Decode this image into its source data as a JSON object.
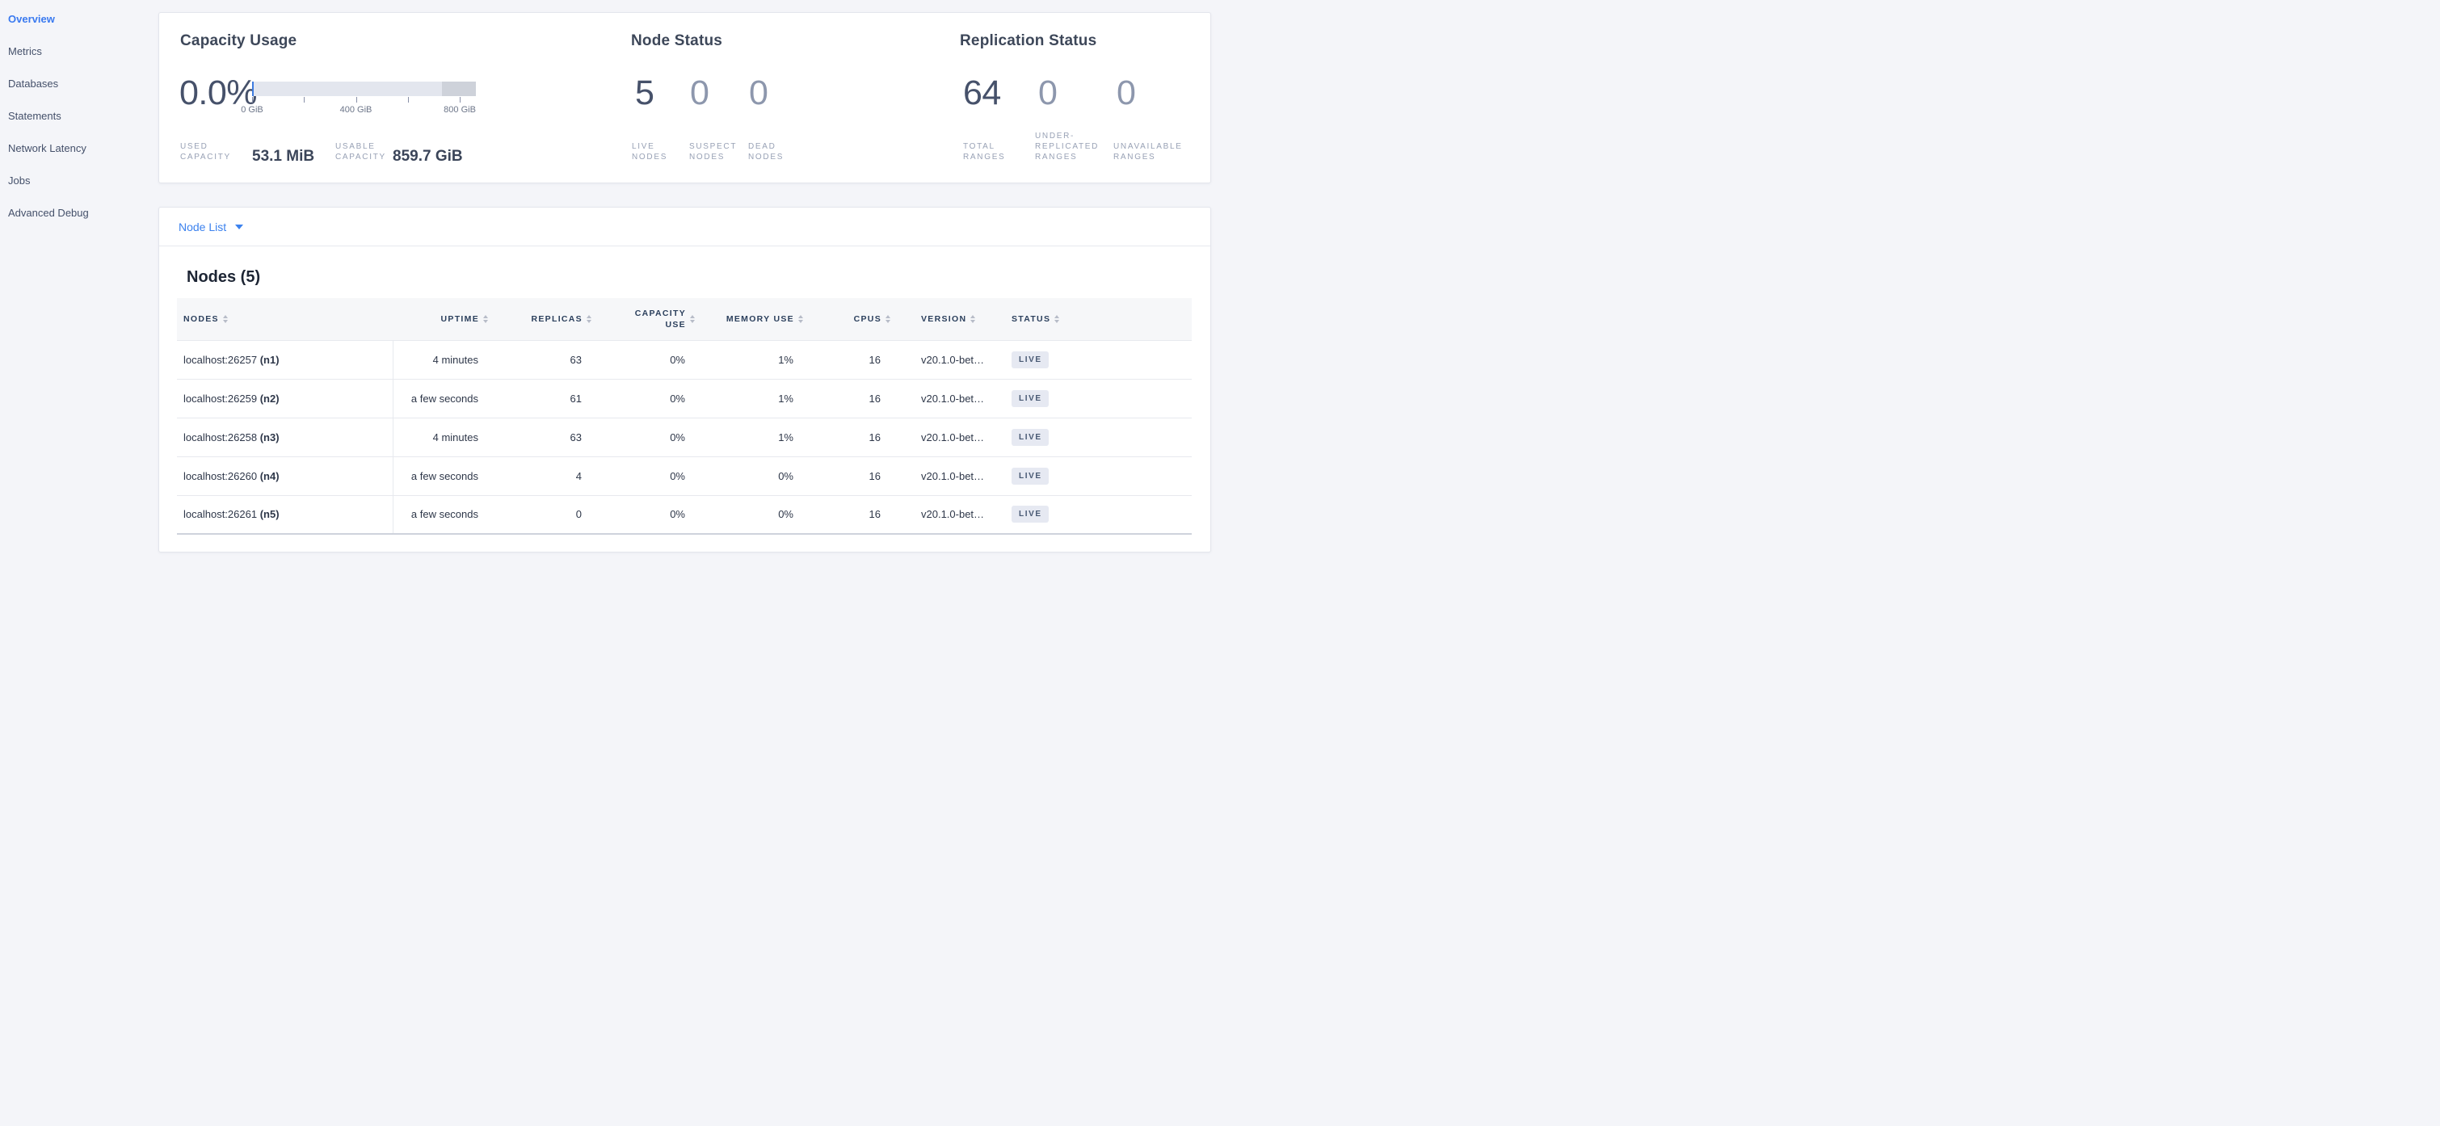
{
  "colors": {
    "page_bg": "#f4f5f9",
    "sidebar_active_blue": "#3a7af0",
    "link_blue": "#3c82ee",
    "gauge_track": "#e3e6ee",
    "gauge_free_segment": "#ced2da",
    "gauge_used_marker": "#3e7ce0",
    "badge_bg": "#e6e9f2",
    "badge_text": "#475872"
  },
  "sidebar": {
    "items": [
      {
        "label": "Overview",
        "active": true
      },
      {
        "label": "Metrics",
        "active": false
      },
      {
        "label": "Databases",
        "active": false
      },
      {
        "label": "Statements",
        "active": false
      },
      {
        "label": "Network Latency",
        "active": false
      },
      {
        "label": "Jobs",
        "active": false
      },
      {
        "label": "Advanced Debug",
        "active": false
      }
    ]
  },
  "summary": {
    "capacity": {
      "title": "Capacity Usage",
      "percent": "0.0%",
      "used_label": "USED\nCAPACITY",
      "used_value": "53.1 MiB",
      "usable_label": "USABLE\nCAPACITY",
      "usable_value": "859.7 GiB",
      "gauge": {
        "ticks": [
          {
            "pct": 0,
            "label": "0 GiB"
          },
          {
            "pct": 23.2,
            "label": ""
          },
          {
            "pct": 46.4,
            "label": "400 GiB"
          },
          {
            "pct": 69.6,
            "label": ""
          },
          {
            "pct": 92.8,
            "label": "800 GiB"
          }
        ],
        "dark_segment_start_pct": 85,
        "used_marker_pct": 0
      }
    },
    "node_status": {
      "title": "Node Status",
      "metrics": [
        {
          "value": "5",
          "label": "LIVE\nNODES",
          "dim": false
        },
        {
          "value": "0",
          "label": "SUSPECT\nNODES",
          "dim": true
        },
        {
          "value": "0",
          "label": "DEAD\nNODES",
          "dim": true
        }
      ]
    },
    "replication_status": {
      "title": "Replication Status",
      "metrics": [
        {
          "value": "64",
          "label": "TOTAL\nRANGES",
          "dim": false
        },
        {
          "value": "0",
          "label": "UNDER-\nREPLICATED\nRANGES",
          "dim": true
        },
        {
          "value": "0",
          "label": "UNAVAILABLE\nRANGES",
          "dim": true
        }
      ]
    }
  },
  "node_list_card": {
    "selector_label": "Node List",
    "heading": "Nodes (5)"
  },
  "table": {
    "columns": [
      {
        "label": "NODES",
        "align": "left"
      },
      {
        "label": "UPTIME",
        "align": "right"
      },
      {
        "label": "REPLICAS",
        "align": "right"
      },
      {
        "label": "CAPACITY\nUSE",
        "align": "right"
      },
      {
        "label": "MEMORY USE",
        "align": "right"
      },
      {
        "label": "CPUS",
        "align": "right"
      },
      {
        "label": "VERSION",
        "align": "left"
      },
      {
        "label": "STATUS",
        "align": "left"
      }
    ],
    "rows": [
      {
        "address": "localhost:26257",
        "node_id": "(n1)",
        "uptime": "4 minutes",
        "replicas": "63",
        "capacity_use": "0%",
        "memory_use": "1%",
        "cpus": "16",
        "version": "v20.1.0-bet…",
        "status": "LIVE"
      },
      {
        "address": "localhost:26259",
        "node_id": "(n2)",
        "uptime": "a few seconds",
        "replicas": "61",
        "capacity_use": "0%",
        "memory_use": "1%",
        "cpus": "16",
        "version": "v20.1.0-bet…",
        "status": "LIVE"
      },
      {
        "address": "localhost:26258",
        "node_id": "(n3)",
        "uptime": "4 minutes",
        "replicas": "63",
        "capacity_use": "0%",
        "memory_use": "1%",
        "cpus": "16",
        "version": "v20.1.0-bet…",
        "status": "LIVE"
      },
      {
        "address": "localhost:26260",
        "node_id": "(n4)",
        "uptime": "a few seconds",
        "replicas": "4",
        "capacity_use": "0%",
        "memory_use": "0%",
        "cpus": "16",
        "version": "v20.1.0-bet…",
        "status": "LIVE"
      },
      {
        "address": "localhost:26261",
        "node_id": "(n5)",
        "uptime": "a few seconds",
        "replicas": "0",
        "capacity_use": "0%",
        "memory_use": "0%",
        "cpus": "16",
        "version": "v20.1.0-bet…",
        "status": "LIVE"
      }
    ]
  }
}
